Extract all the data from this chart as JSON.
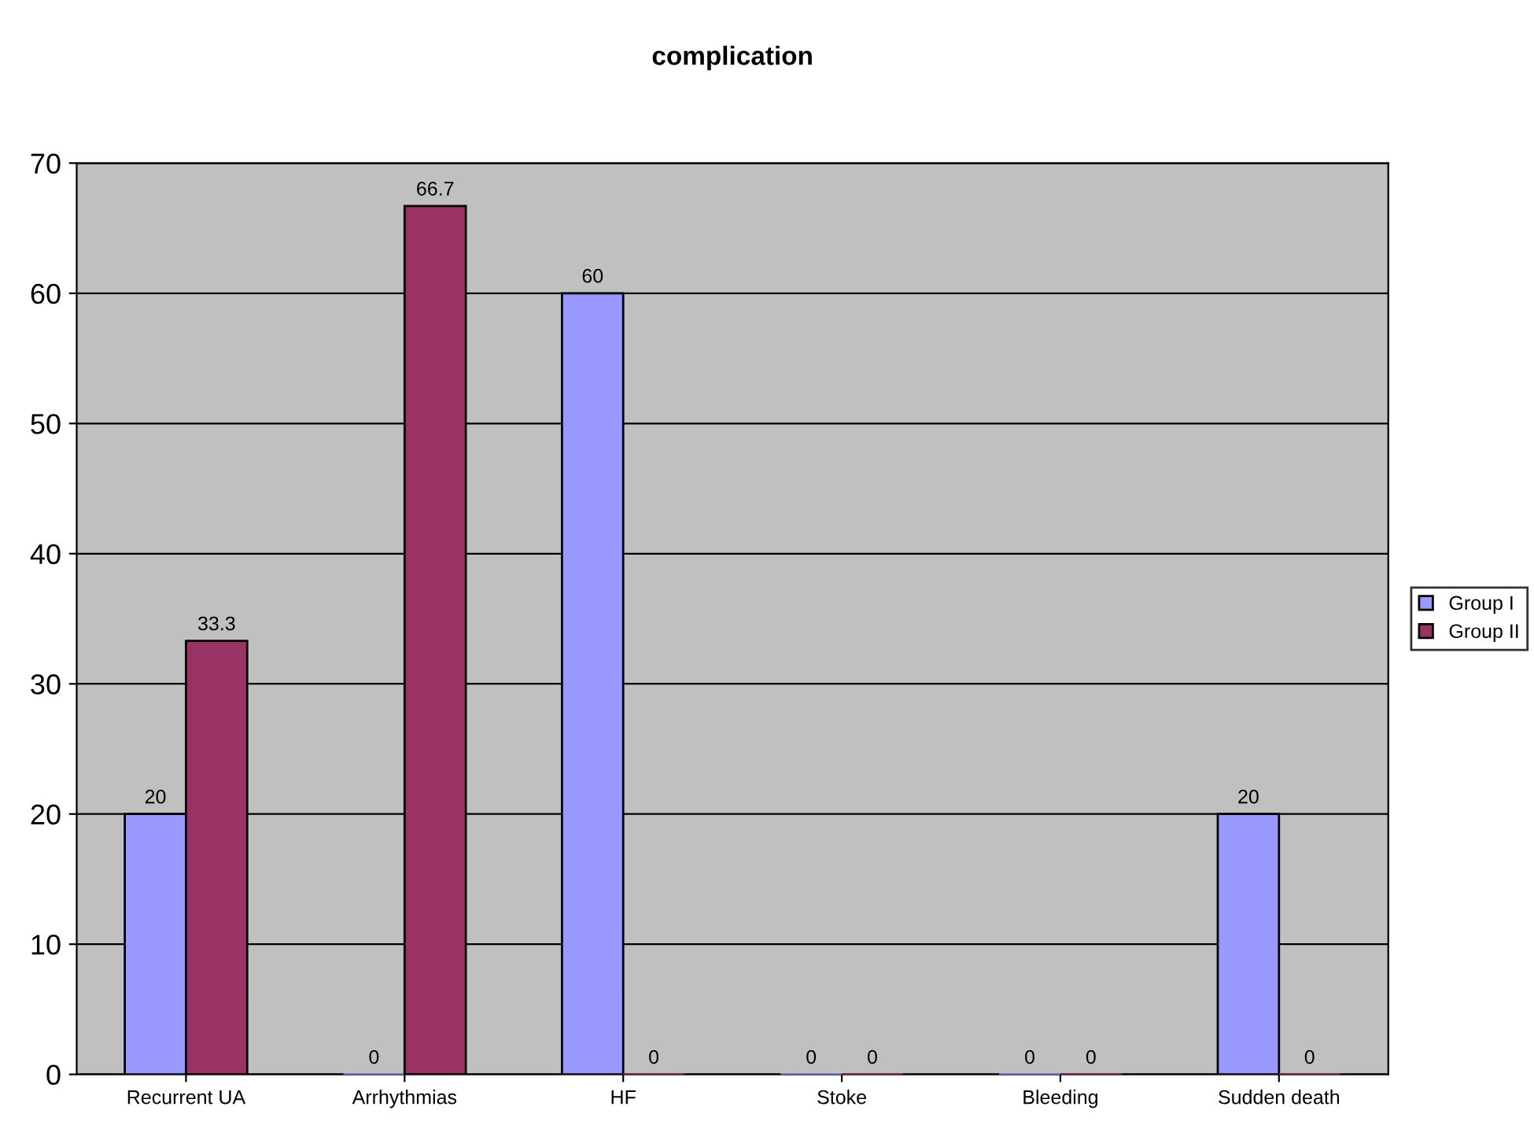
{
  "chart_data": {
    "type": "bar",
    "title": "complication",
    "categories": [
      "Recurrent UA",
      "Arrhythmias",
      "HF",
      "Stoke",
      "Bleeding",
      "Sudden death"
    ],
    "series": [
      {
        "name": "Group I",
        "color": "#9999ff",
        "values": [
          20,
          0,
          60,
          0,
          0,
          20
        ]
      },
      {
        "name": "Group II",
        "color": "#993366",
        "values": [
          33.3,
          66.7,
          0,
          0,
          0,
          0
        ]
      }
    ],
    "ylim": [
      0,
      70
    ],
    "yticks": [
      0,
      10,
      20,
      30,
      40,
      50,
      60,
      70
    ],
    "grid": "y",
    "legend": "right",
    "data_labels": true
  }
}
